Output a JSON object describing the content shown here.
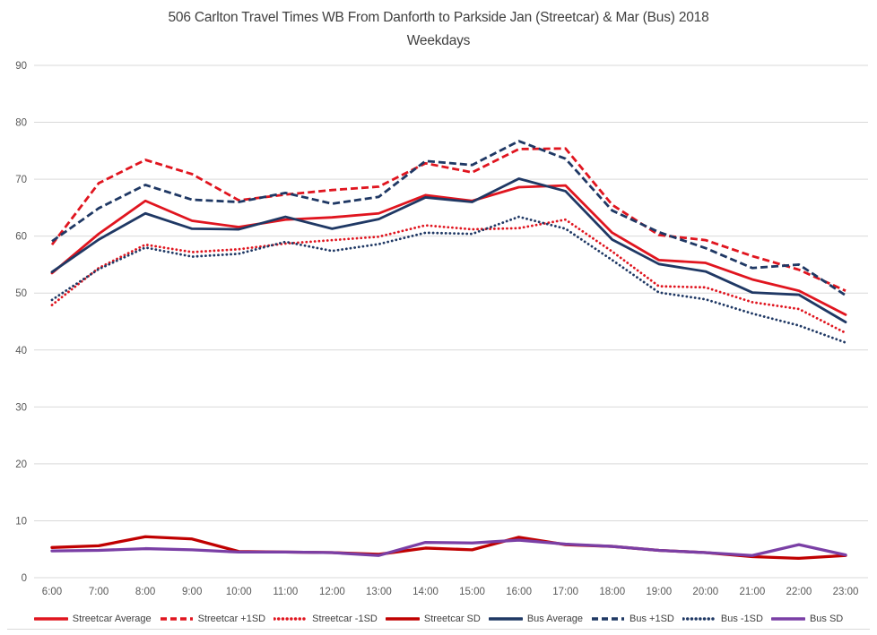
{
  "title": {
    "line1": "506 Carlton Travel Times WB From Danforth to Parkside Jan (Streetcar) & Mar (Bus) 2018",
    "line2": "Weekdays"
  },
  "colors": {
    "streetcar_red": "#e0151f",
    "streetcar_dark_red": "#c00000",
    "bus_navy": "#1f3864",
    "bus_sd_purple": "#7a3fa5",
    "gridline": "#d9d9d9",
    "axis_text": "#595959",
    "title_text": "#404040"
  },
  "chart_data": {
    "type": "line",
    "title": "506 Carlton Travel Times WB From Danforth to Parkside Jan (Streetcar) & Mar (Bus) 2018 Weekdays",
    "xlabel": "",
    "ylabel": "",
    "ylim": [
      0,
      90
    ],
    "y_ticks": [
      0,
      10,
      20,
      30,
      40,
      50,
      60,
      70,
      80,
      90
    ],
    "grid": true,
    "legend_position": "bottom",
    "x_labels": [
      "6:00",
      "7:00",
      "8:00",
      "9:00",
      "10:00",
      "11:00",
      "12:00",
      "13:00",
      "14:00",
      "15:00",
      "16:00",
      "17:00",
      "18:00",
      "19:00",
      "20:00",
      "21:00",
      "22:00",
      "23:00"
    ],
    "series": [
      {
        "name": "Streetcar Average",
        "color": "#e0151f",
        "style": "solid",
        "width": 2.8,
        "values": [
          53.5,
          60.4,
          66.2,
          62.7,
          61.6,
          62.9,
          63.3,
          64.0,
          67.2,
          66.2,
          68.6,
          68.9,
          60.6,
          55.8,
          55.3,
          52.4,
          50.4,
          46.2
        ]
      },
      {
        "name": "Streetcar +1SD",
        "color": "#e0151f",
        "style": "dashed",
        "width": 2.8,
        "values": [
          58.5,
          69.3,
          73.4,
          70.9,
          66.3,
          67.3,
          68.1,
          68.7,
          72.8,
          71.2,
          75.3,
          75.4,
          65.5,
          60.2,
          59.3,
          56.5,
          54.1,
          50.4
        ]
      },
      {
        "name": "Streetcar -1SD",
        "color": "#e0151f",
        "style": "dotted",
        "width": 2.8,
        "values": [
          47.9,
          54.4,
          58.5,
          57.2,
          57.7,
          58.7,
          59.3,
          59.9,
          61.9,
          61.2,
          61.4,
          62.9,
          57.3,
          51.2,
          51.0,
          48.4,
          47.2,
          43.0
        ]
      },
      {
        "name": "Streetcar SD",
        "color": "#c00000",
        "style": "solid",
        "width": 3.3,
        "values": [
          5.3,
          5.6,
          7.2,
          6.8,
          4.6,
          4.5,
          4.4,
          4.1,
          5.2,
          4.9,
          7.1,
          5.8,
          5.5,
          4.8,
          4.4,
          3.7,
          3.4,
          3.9
        ]
      },
      {
        "name": "Bus Average",
        "color": "#1f3864",
        "style": "solid",
        "width": 2.8,
        "values": [
          53.7,
          59.4,
          64.0,
          61.3,
          61.2,
          63.4,
          61.3,
          63.0,
          66.8,
          66.0,
          70.1,
          67.9,
          59.4,
          55.1,
          53.8,
          50.1,
          49.7,
          44.9
        ]
      },
      {
        "name": "Bus +1SD",
        "color": "#1f3864",
        "style": "dashed",
        "width": 2.8,
        "values": [
          59.1,
          64.9,
          69.0,
          66.4,
          66.0,
          67.6,
          65.7,
          66.9,
          73.2,
          72.5,
          76.7,
          73.6,
          64.5,
          60.7,
          57.9,
          54.4,
          55.0,
          49.6
        ]
      },
      {
        "name": "Bus -1SD",
        "color": "#1f3864",
        "style": "dotted",
        "width": 2.8,
        "values": [
          48.8,
          54.2,
          58.0,
          56.4,
          56.9,
          59.0,
          57.4,
          58.6,
          60.6,
          60.4,
          63.4,
          61.3,
          55.8,
          50.1,
          48.9,
          46.4,
          44.3,
          41.3
        ]
      },
      {
        "name": "Bus SD",
        "color": "#7a3fa5",
        "style": "solid",
        "width": 3.3,
        "values": [
          4.7,
          4.8,
          5.1,
          4.9,
          4.5,
          4.5,
          4.4,
          3.9,
          6.2,
          6.1,
          6.6,
          5.9,
          5.5,
          4.8,
          4.4,
          3.9,
          5.8,
          4.0
        ]
      }
    ]
  }
}
